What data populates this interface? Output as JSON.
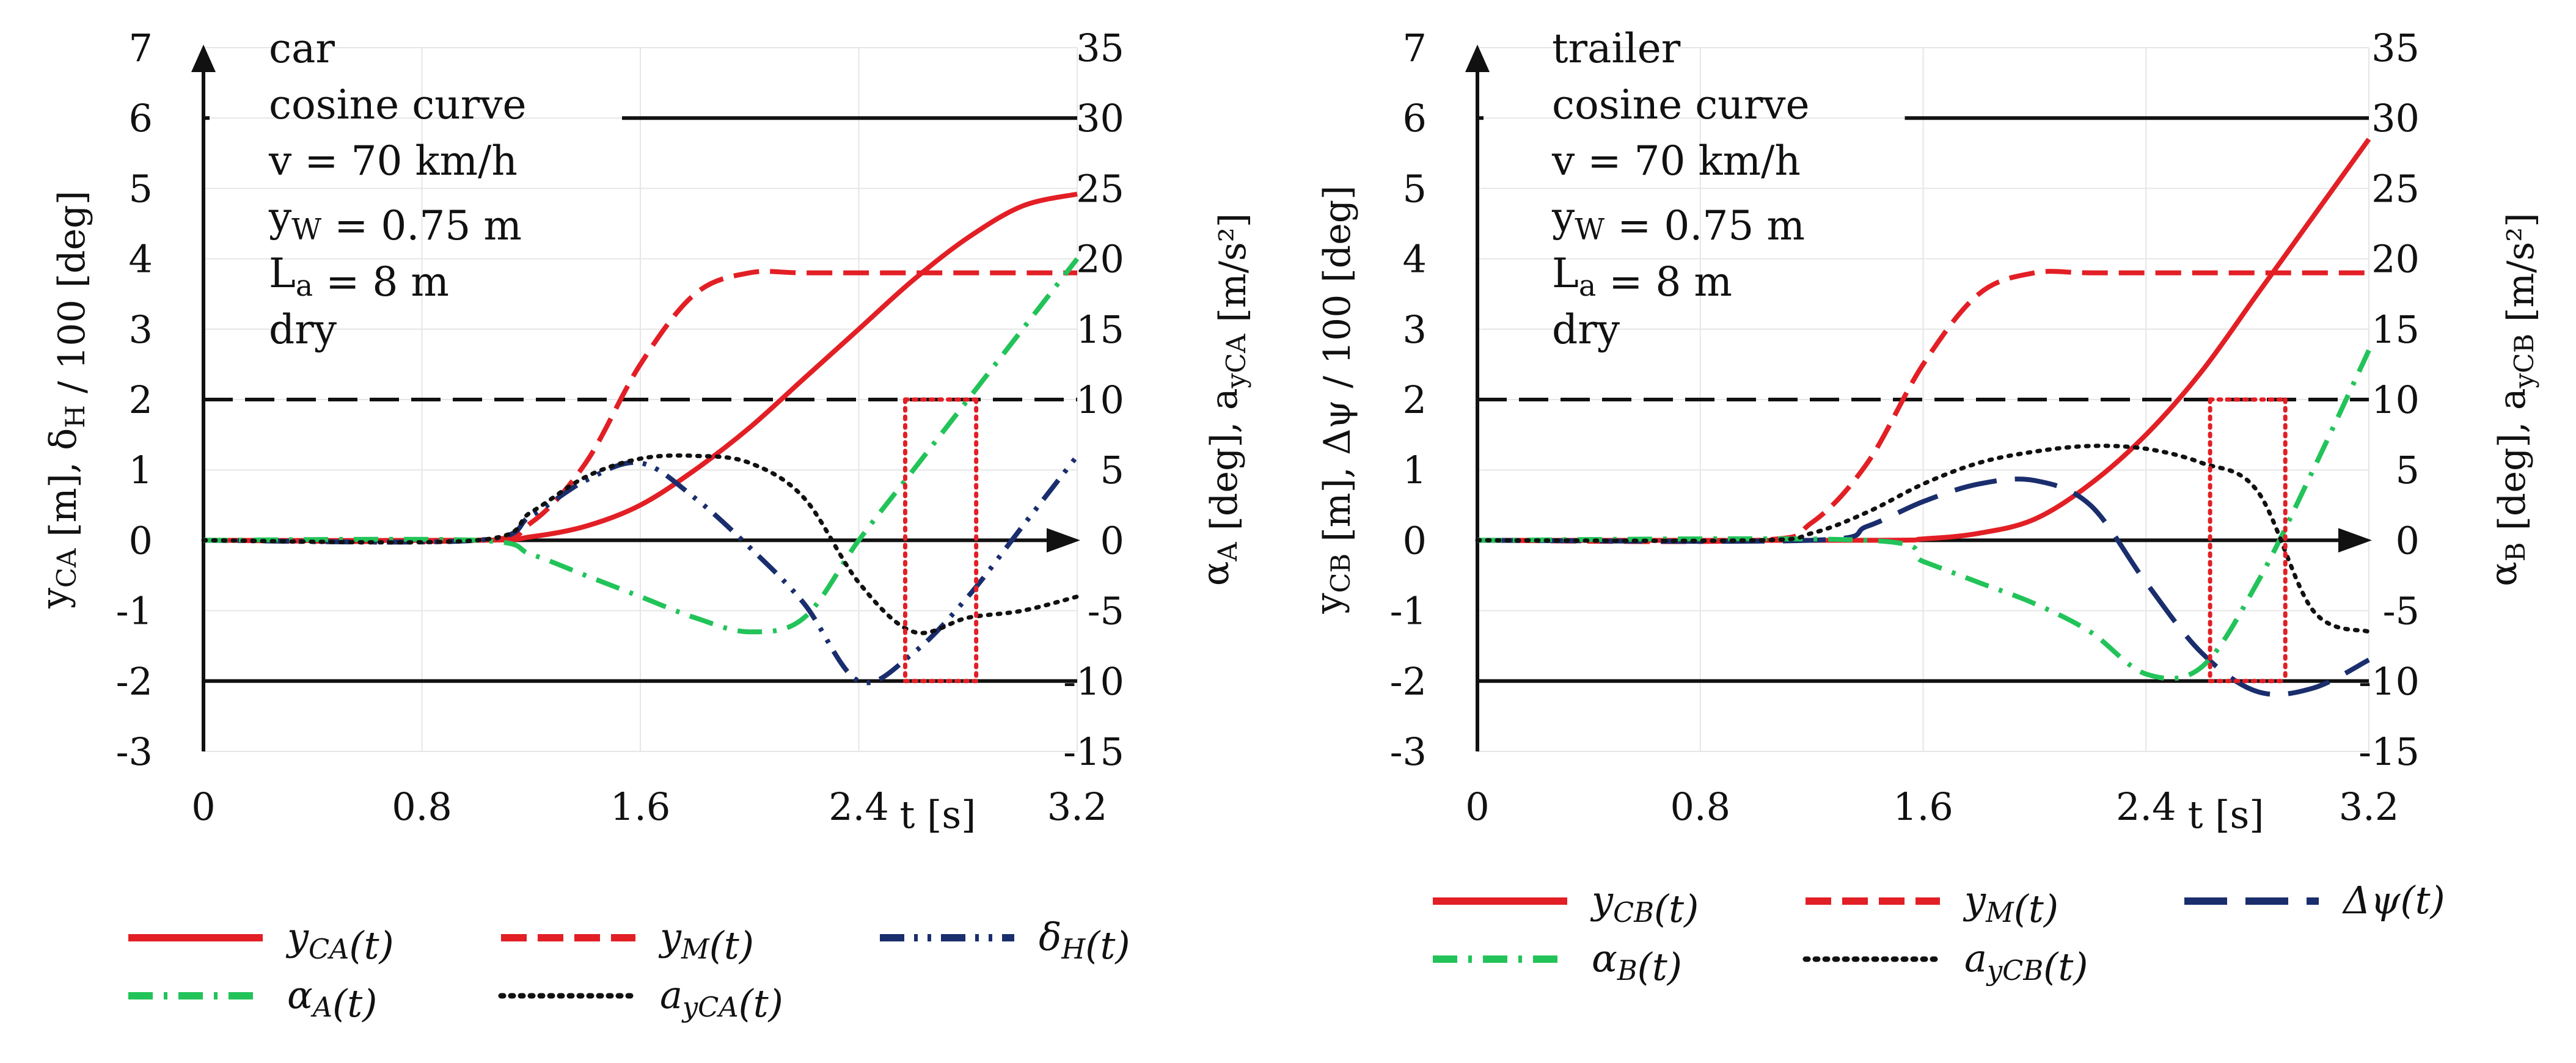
{
  "chart_data": [
    {
      "type": "line",
      "panel": "car",
      "x_axis": {
        "label": "t [s]",
        "range": [
          0,
          3.2
        ],
        "ticks": [
          "0",
          "0.8",
          "1.6",
          "2.4",
          "3.2"
        ]
      },
      "y_left": {
        "label": "y_CA [m], δ_H / 100 [deg]",
        "range": [
          -3,
          7
        ],
        "ticks": [
          "-3",
          "-2",
          "-1",
          "0",
          "1",
          "2",
          "3",
          "4",
          "5",
          "6",
          "7"
        ]
      },
      "y_right": {
        "label": "α_A [deg], a_yCA [m/s²]",
        "range": [
          -15,
          35
        ],
        "ticks": [
          "-15",
          "-10",
          "-5",
          "0",
          "5",
          "10",
          "15",
          "20",
          "25",
          "30",
          "35"
        ]
      },
      "annotations": [
        "car",
        "cosine curve",
        "v = 70 km/h",
        "y_W = 0.75 m",
        "L_a = 8 m",
        "dry"
      ],
      "reference_lines_left": {
        "solid": [
          6,
          -2
        ],
        "dashed": [
          2
        ]
      },
      "vertical_markers_t": [
        2.57,
        2.83
      ],
      "series": [
        {
          "name": "y_CA(t)",
          "axis": "left",
          "color": "#e31f26",
          "style": "solid",
          "t": [
            0,
            1.0,
            1.2,
            1.4,
            1.6,
            1.8,
            2.0,
            2.2,
            2.4,
            2.6,
            2.8,
            3.0,
            3.2
          ],
          "values": [
            0,
            0,
            0.05,
            0.2,
            0.5,
            1.0,
            1.6,
            2.3,
            3.0,
            3.7,
            4.3,
            4.75,
            4.92
          ]
        },
        {
          "name": "y_M(t)",
          "axis": "left",
          "color": "#e31f26",
          "style": "dashed",
          "t": [
            0,
            1.0,
            1.2,
            1.4,
            1.6,
            1.8,
            2.0,
            2.2,
            2.6,
            3.0,
            3.2
          ],
          "values": [
            0,
            0,
            0.25,
            1.1,
            2.5,
            3.5,
            3.8,
            3.8,
            3.8,
            3.8,
            3.8
          ]
        },
        {
          "name": "δ_H(t)",
          "axis": "left",
          "color": "#1a2e6e",
          "style": "dash-dot-dot",
          "t": [
            0,
            1.0,
            1.2,
            1.4,
            1.6,
            1.8,
            2.0,
            2.2,
            2.4,
            2.6,
            2.8,
            3.0,
            3.2
          ],
          "values": [
            0,
            0,
            0.35,
            0.85,
            1.1,
            0.6,
            -0.1,
            -0.9,
            -2.0,
            -1.6,
            -0.8,
            0.2,
            1.2
          ]
        },
        {
          "name": "α_A(t)",
          "axis": "right",
          "color": "#22c45a",
          "style": "dash-dot",
          "t": [
            0,
            1.0,
            1.2,
            1.4,
            1.6,
            1.8,
            2.0,
            2.2,
            2.4,
            2.6,
            2.8,
            3.0,
            3.2
          ],
          "values": [
            0,
            0,
            -1,
            -2.5,
            -4,
            -5.5,
            -6.5,
            -5.5,
            0,
            5,
            10,
            15,
            20
          ]
        },
        {
          "name": "a_yCA(t)",
          "axis": "right",
          "color": "#111111",
          "style": "dotted",
          "t": [
            0,
            1.0,
            1.2,
            1.4,
            1.6,
            1.8,
            2.0,
            2.2,
            2.4,
            2.6,
            2.8,
            3.0,
            3.2
          ],
          "values": [
            0,
            0,
            2,
            4.5,
            5.8,
            6,
            5.5,
            3,
            -3,
            -6.5,
            -5.5,
            -5,
            -4
          ]
        }
      ],
      "legend": [
        "y_CA(t)",
        "y_M(t)",
        "δ_H(t)",
        "α_A(t)",
        "a_yCA(t)"
      ]
    },
    {
      "type": "line",
      "panel": "trailer",
      "x_axis": {
        "label": "t [s]",
        "range": [
          0,
          3.2
        ],
        "ticks": [
          "0",
          "0.8",
          "1.6",
          "2.4",
          "3.2"
        ]
      },
      "y_left": {
        "label": "y_CB [m], Δψ / 100 [deg]",
        "range": [
          -3,
          7
        ],
        "ticks": [
          "-3",
          "-2",
          "-1",
          "0",
          "1",
          "2",
          "3",
          "4",
          "5",
          "6",
          "7"
        ]
      },
      "y_right": {
        "label": "α_B [deg], a_yCB [m/s²]",
        "range": [
          -15,
          35
        ],
        "ticks": [
          "-15",
          "-10",
          "-5",
          "0",
          "5",
          "10",
          "15",
          "20",
          "25",
          "30",
          "35"
        ]
      },
      "annotations": [
        "trailer",
        "cosine curve",
        "v = 70 km/h",
        "y_W = 0.75 m",
        "L_a = 8 m",
        "dry"
      ],
      "reference_lines_left": {
        "solid": [
          6,
          -2
        ],
        "dashed": [
          2
        ]
      },
      "vertical_markers_t": [
        2.63,
        2.9
      ],
      "series": [
        {
          "name": "y_CB(t)",
          "axis": "left",
          "color": "#e31f26",
          "style": "solid",
          "t": [
            0,
            1.4,
            1.6,
            1.8,
            2.0,
            2.2,
            2.4,
            2.6,
            2.8,
            3.0,
            3.2
          ],
          "values": [
            0,
            0,
            0.02,
            0.1,
            0.3,
            0.8,
            1.5,
            2.4,
            3.5,
            4.6,
            5.7
          ]
        },
        {
          "name": "y_M(t)",
          "axis": "left",
          "color": "#e31f26",
          "style": "dashed",
          "t": [
            0,
            1.0,
            1.2,
            1.4,
            1.6,
            1.8,
            2.0,
            2.2,
            2.6,
            3.0,
            3.2
          ],
          "values": [
            0,
            0,
            0.25,
            1.1,
            2.5,
            3.5,
            3.8,
            3.8,
            3.8,
            3.8,
            3.8
          ]
        },
        {
          "name": "Δψ(t)",
          "axis": "left",
          "color": "#1a2e6e",
          "style": "long-dash",
          "t": [
            0,
            1.2,
            1.4,
            1.6,
            1.8,
            2.0,
            2.2,
            2.4,
            2.6,
            2.8,
            3.0,
            3.2
          ],
          "values": [
            0,
            0,
            0.2,
            0.55,
            0.8,
            0.85,
            0.5,
            -0.6,
            -1.6,
            -2.15,
            -2.1,
            -1.7
          ]
        },
        {
          "name": "α_B(t)",
          "axis": "right",
          "color": "#22c45a",
          "style": "dash-dot",
          "t": [
            0,
            1.4,
            1.6,
            1.8,
            2.0,
            2.2,
            2.4,
            2.6,
            2.8,
            3.0,
            3.2
          ],
          "values": [
            0,
            0,
            -1.5,
            -3,
            -4.5,
            -6.5,
            -9.5,
            -9,
            -3,
            5,
            13.5
          ]
        },
        {
          "name": "a_yCB(t)",
          "axis": "right",
          "color": "#111111",
          "style": "dotted",
          "t": [
            0,
            1.0,
            1.2,
            1.4,
            1.6,
            1.8,
            2.0,
            2.2,
            2.4,
            2.6,
            2.8,
            3.0,
            3.2
          ],
          "values": [
            0,
            0,
            0.5,
            2,
            4,
            5.5,
            6.3,
            6.7,
            6.5,
            5.5,
            3.5,
            -5,
            -6.5
          ]
        }
      ],
      "legend": [
        "y_CB(t)",
        "y_M(t)",
        "Δψ(t)",
        "α_B(t)",
        "a_yCB(t)"
      ]
    }
  ]
}
